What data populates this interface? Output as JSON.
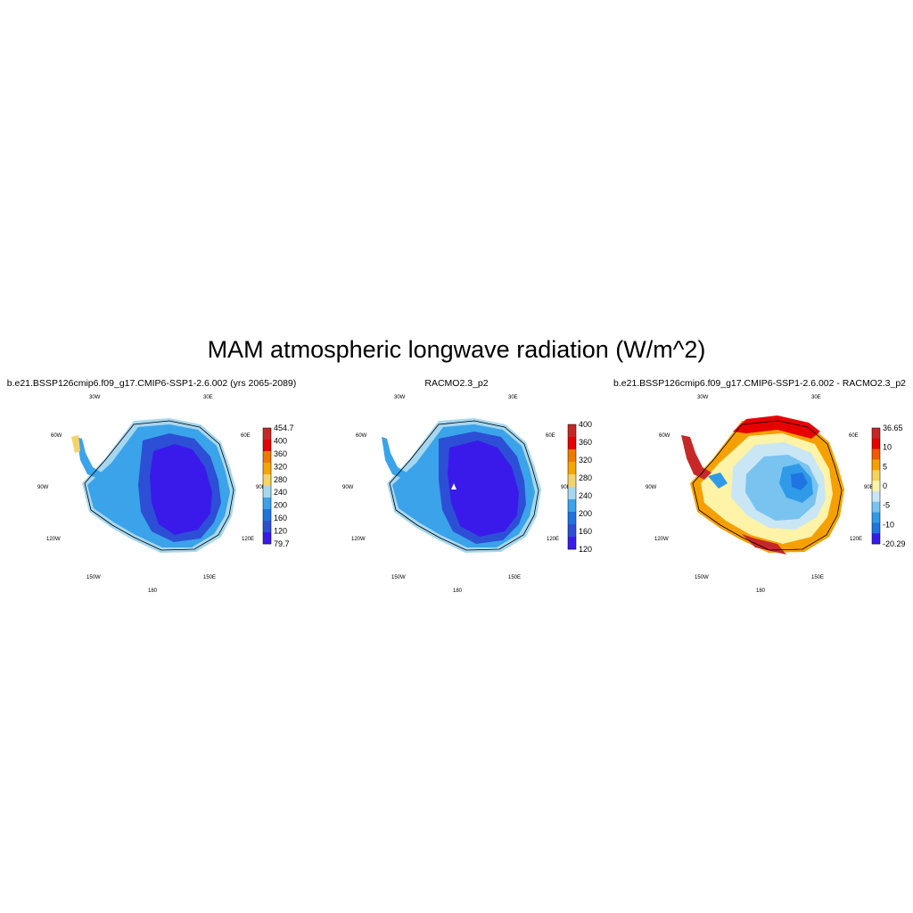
{
  "title": "MAM atmospheric longwave radiation (W/m^2)",
  "lon_labels": [
    "30W",
    "30E",
    "60W",
    "60E",
    "90W",
    "90E",
    "120W",
    "120E",
    "150W",
    "150E",
    "180"
  ],
  "panels": [
    {
      "title": "b.e21.BSSP126cmip6.f09_g17.CMIP6-SSP1-2.6.002 (yrs 2065-2089)",
      "colorbar": {
        "labels": [
          "454.7",
          "400",
          "360",
          "320",
          "280",
          "240",
          "200",
          "160",
          "120",
          "79.7"
        ],
        "colors": [
          "#c62828",
          "#e60000",
          "#f07a00",
          "#f5a600",
          "#f5d36b",
          "#a6d7f0",
          "#3aa3ea",
          "#1f74e0",
          "#2c4fd6",
          "#3a1aeb"
        ]
      }
    },
    {
      "title": "RACMO2.3_p2",
      "colorbar": {
        "labels": [
          "400",
          "360",
          "320",
          "280",
          "240",
          "200",
          "160",
          "120"
        ],
        "colors": [
          "#c62828",
          "#e60000",
          "#f07a00",
          "#f5a600",
          "#f5d36b",
          "#a6d7f0",
          "#3aa3ea",
          "#1f74e0",
          "#2c4fd6",
          "#3a1aeb"
        ]
      }
    },
    {
      "title": "b.e21.BSSP126cmip6.f09_g17.CMIP6-SSP1-2.6.002 - RACMO2.3_p2",
      "colorbar": {
        "labels": [
          "36.65",
          "10",
          "5",
          "0",
          "-5",
          "-10",
          "-20.29"
        ],
        "colors": [
          "#c62828",
          "#e60000",
          "#f05a00",
          "#f5a000",
          "#f6d35a",
          "#fff3a8",
          "#c9e6f5",
          "#79c3f0",
          "#2f9be8",
          "#1f74e0",
          "#3a1aeb"
        ]
      }
    }
  ]
}
